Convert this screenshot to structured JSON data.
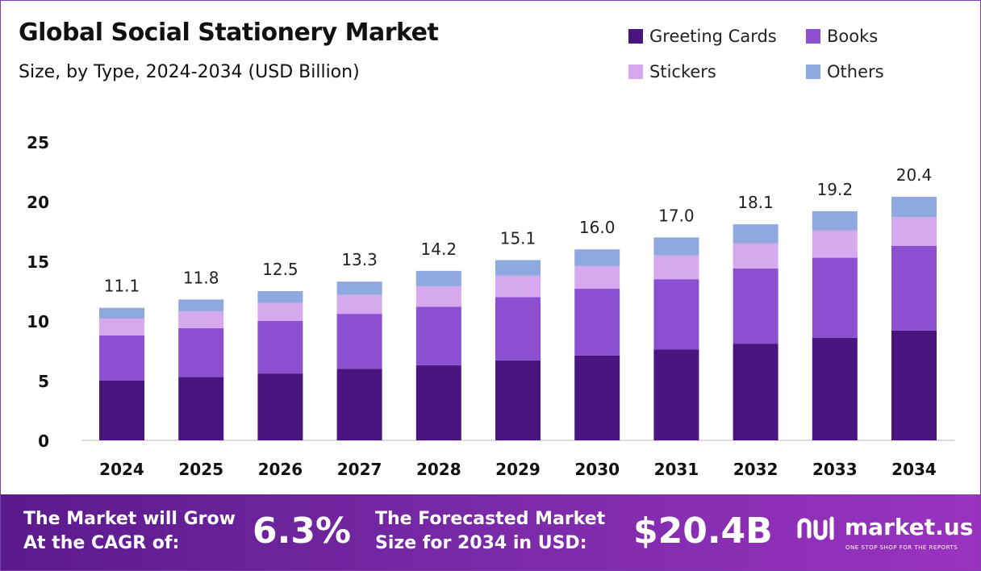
{
  "header": {
    "title": "Global Social Stationery Market",
    "subtitle": "Size, by Type, 2024-2034 (USD Billion)"
  },
  "chart_data": {
    "type": "bar",
    "stacked": true,
    "categories": [
      "2024",
      "2025",
      "2026",
      "2027",
      "2028",
      "2029",
      "2030",
      "2031",
      "2032",
      "2033",
      "2034"
    ],
    "series": [
      {
        "name": "Greeting Cards",
        "color": "#4b1580",
        "values": [
          5.0,
          5.3,
          5.6,
          6.0,
          6.3,
          6.7,
          7.1,
          7.6,
          8.1,
          8.6,
          9.2
        ]
      },
      {
        "name": "Books",
        "color": "#8b4fd0",
        "values": [
          3.8,
          4.1,
          4.4,
          4.6,
          4.9,
          5.3,
          5.6,
          5.9,
          6.3,
          6.7,
          7.1
        ]
      },
      {
        "name": "Stickers",
        "color": "#d6a8ee",
        "values": [
          1.4,
          1.4,
          1.5,
          1.6,
          1.7,
          1.8,
          1.9,
          2.0,
          2.1,
          2.3,
          2.4
        ]
      },
      {
        "name": "Others",
        "color": "#8ea8e0",
        "values": [
          0.9,
          1.0,
          1.0,
          1.1,
          1.3,
          1.3,
          1.4,
          1.5,
          1.6,
          1.6,
          1.7
        ]
      }
    ],
    "totals": [
      "11.1",
      "11.8",
      "12.5",
      "13.3",
      "14.2",
      "15.1",
      "16.0",
      "17.0",
      "18.1",
      "19.2",
      "20.4"
    ],
    "y_ticks": [
      0,
      5,
      10,
      15,
      20,
      25
    ],
    "ylim": [
      0,
      25
    ],
    "legend_position": "top-right",
    "grid": false
  },
  "footer": {
    "cagr_label_line1": "The Market will Grow",
    "cagr_label_line2": "At the CAGR of:",
    "cagr_value": "6.3%",
    "forecast_label_line1": "The Forecasted Market",
    "forecast_label_line2": "Size for 2034 in USD:",
    "forecast_value": "$20.4B",
    "logo_name": "market.us",
    "logo_tagline": "ONE STOP SHOP FOR THE REPORTS",
    "logo_icon": "market-us-logo-icon"
  }
}
